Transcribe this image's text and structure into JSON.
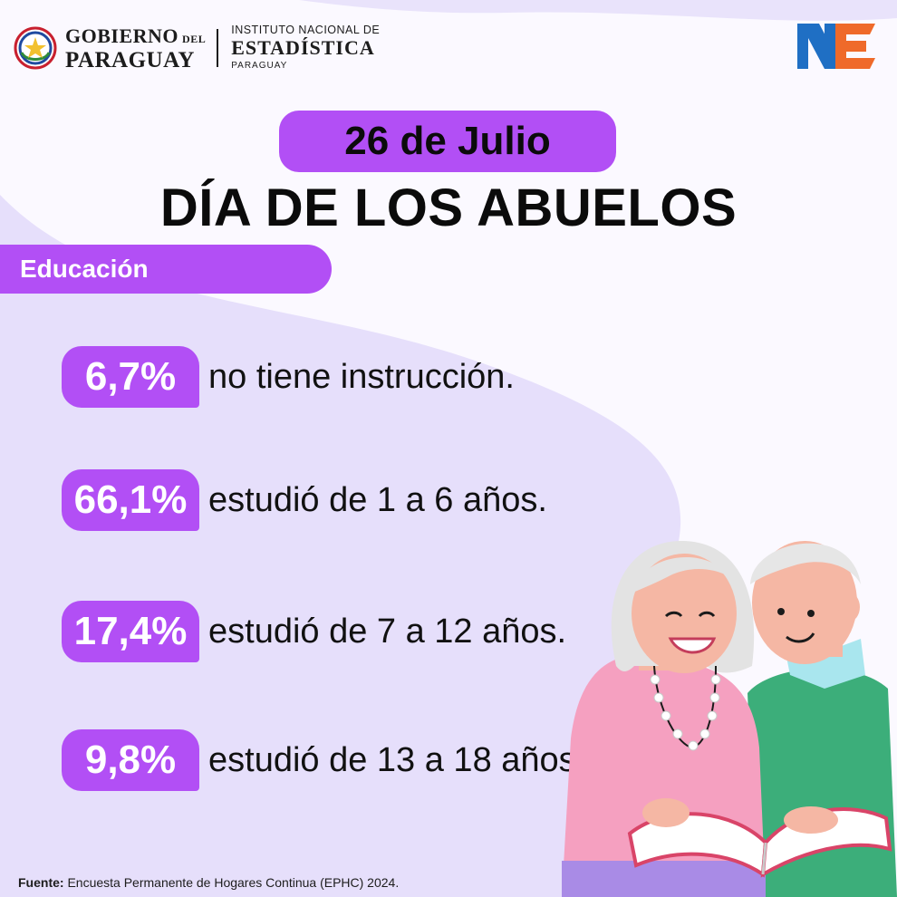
{
  "header": {
    "gov_logo": {
      "line1": "GOBIERNO",
      "line1_small": "DEL",
      "line2": "PARAGUAY",
      "icon": "paraguay-seal-icon"
    },
    "ine_logo": {
      "line1": "INSTITUTO NACIONAL DE",
      "line2": "ESTADÍSTICA",
      "line3": "PARAGUAY",
      "mark_text": "INE"
    }
  },
  "date_label": "26 de Julio",
  "title": "DÍA DE LOS ABUELOS",
  "section_label": "Educación",
  "stats": [
    {
      "value": "6,7%",
      "text": "no tiene instrucción."
    },
    {
      "value": "66,1%",
      "text": "estudió de 1 a 6 años."
    },
    {
      "value": "17,4%",
      "text": "estudió de 7 a 12 años."
    },
    {
      "value": "9,8%",
      "text": "estudió de 13 a 18 años."
    }
  ],
  "illustration": "elderly-couple-reading-book",
  "source": {
    "label": "Fuente:",
    "text": "Encuesta Permanente de Hogares Continua (EPHC) 2024."
  },
  "colors": {
    "accent_purple": "#b24ff5",
    "background_lilac": "#e6dffb",
    "ine_blue": "#1f6fc4",
    "ine_orange": "#ef6a2a"
  }
}
